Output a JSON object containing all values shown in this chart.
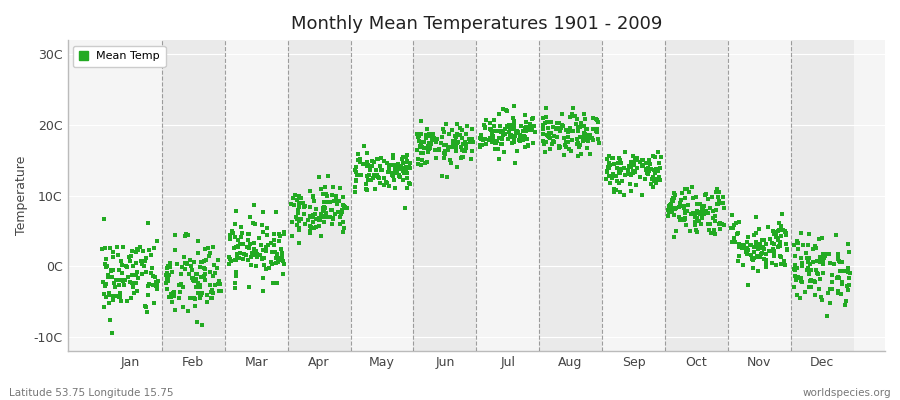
{
  "title": "Monthly Mean Temperatures 1901 - 2009",
  "ylabel": "Temperature",
  "xlabel_months": [
    "Jan",
    "Feb",
    "Mar",
    "Apr",
    "May",
    "Jun",
    "Jul",
    "Aug",
    "Sep",
    "Oct",
    "Nov",
    "Dec"
  ],
  "yticks": [
    -10,
    0,
    10,
    20,
    30
  ],
  "ytick_labels": [
    "-10C",
    "0C",
    "10C",
    "20C",
    "30C"
  ],
  "ylim": [
    -12,
    32
  ],
  "xlim": [
    -0.5,
    12.5
  ],
  "legend_label": "Mean Temp",
  "dot_color": "#22aa22",
  "fig_bg_color": "#ffffff",
  "band_color_light": "#f5f5f5",
  "band_color_dark": "#eaeaea",
  "grid_color": "#ffffff",
  "dashed_line_color": "#888888",
  "bottom_left": "Latitude 53.75 Longitude 15.75",
  "bottom_right": "worldspecies.org",
  "monthly_means": [
    -1.5,
    -2.0,
    2.5,
    8.0,
    13.5,
    17.0,
    19.0,
    18.5,
    13.5,
    8.0,
    3.0,
    -0.5
  ],
  "monthly_stds": [
    3.0,
    3.0,
    2.2,
    1.8,
    1.5,
    1.5,
    1.5,
    1.5,
    1.5,
    1.8,
    2.0,
    2.5
  ],
  "n_years": 109,
  "seed": 42
}
